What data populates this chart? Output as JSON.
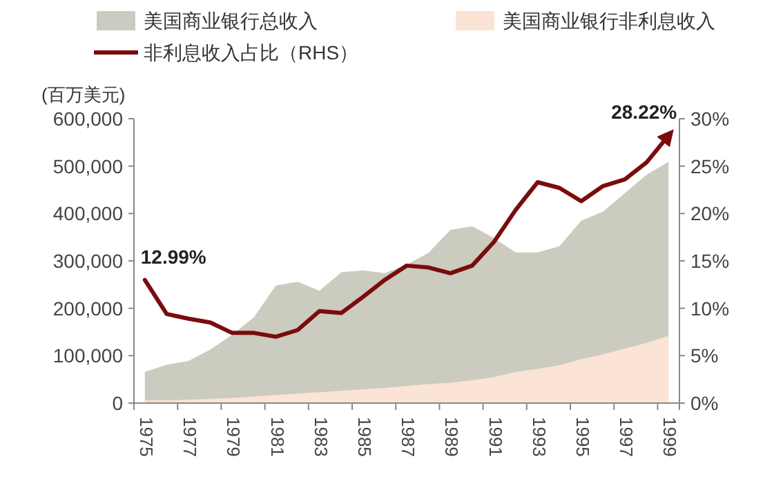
{
  "chart_data": {
    "type": "area",
    "ylabel": "(百万美元)",
    "legend": "top",
    "categories": [
      "1975",
      null,
      "1977",
      null,
      "1979",
      null,
      "1981",
      null,
      "1983",
      null,
      "1985",
      null,
      "1987",
      null,
      "1989",
      null,
      "1991",
      null,
      "1993",
      null,
      "1995",
      null,
      "1997",
      null,
      "1999"
    ],
    "series": [
      {
        "name": "美国商业银行总收入",
        "color": "#cbcbbf",
        "values": [
          66000,
          81000,
          89000,
          113000,
          144000,
          181000,
          248000,
          256000,
          237000,
          276000,
          280000,
          274000,
          292000,
          317000,
          365000,
          373000,
          348000,
          318000,
          318000,
          331000,
          385000,
          404000,
          443000,
          482000,
          509000
        ]
      },
      {
        "name": "美国商业银行非利息收入",
        "color": "#fbe3d6",
        "values": [
          6000,
          6000,
          7000,
          9000,
          11000,
          14000,
          17000,
          20000,
          23000,
          26000,
          29000,
          32000,
          36000,
          40000,
          43000,
          48000,
          55000,
          66000,
          72000,
          80000,
          93000,
          103000,
          115000,
          127000,
          142000
        ]
      },
      {
        "name": "非利息收入占比（RHS）",
        "type": "line",
        "axis": "y2",
        "color": "#7a0c0c",
        "value_labels": [
          "12.99%",
          null,
          null,
          null,
          null,
          null,
          null,
          null,
          null,
          null,
          null,
          null,
          null,
          null,
          null,
          null,
          null,
          null,
          null,
          null,
          null,
          null,
          null,
          null,
          "28.22%"
        ],
        "values": [
          12.99,
          9.4,
          8.9,
          8.5,
          7.4,
          7.4,
          7.0,
          7.7,
          9.7,
          9.5,
          11.2,
          13.0,
          14.5,
          14.3,
          13.7,
          14.5,
          17.0,
          20.4,
          23.3,
          22.7,
          21.3,
          22.9,
          23.6,
          25.4,
          28.22
        ]
      }
    ],
    "ylim": [
      0,
      600000
    ],
    "yticks": [
      {
        "value": 0,
        "label": "0"
      },
      {
        "value": 100000,
        "label": "100,000"
      },
      {
        "value": 200000,
        "label": "200,000"
      },
      {
        "value": 300000,
        "label": "300,000"
      },
      {
        "value": 400000,
        "label": "400,000"
      },
      {
        "value": 500000,
        "label": "500,000"
      },
      {
        "value": 600000,
        "label": "600,000"
      }
    ],
    "y2lim": [
      0,
      30
    ],
    "y2ticks": [
      {
        "value": 0,
        "label": "0%"
      },
      {
        "value": 5,
        "label": "5%"
      },
      {
        "value": 10,
        "label": "10%"
      },
      {
        "value": 15,
        "label": "15%"
      },
      {
        "value": 20,
        "label": "20%"
      },
      {
        "value": 25,
        "label": "25%"
      },
      {
        "value": 30,
        "label": "30%"
      }
    ]
  }
}
